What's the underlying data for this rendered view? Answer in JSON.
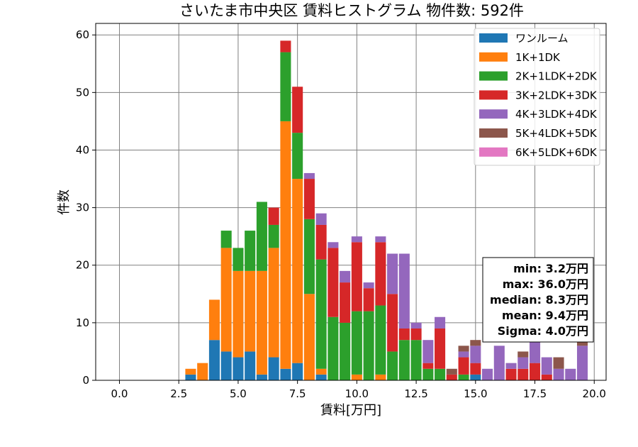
{
  "chart_data": {
    "type": "bar",
    "stacked": true,
    "title": "さいたま市中央区 賃料ヒストグラム  物件数: 592件",
    "xlabel": "賃料[万円]",
    "ylabel": "件数",
    "xlim": [
      -1.0,
      20.5
    ],
    "ylim": [
      0,
      62
    ],
    "xticks": [
      0.0,
      2.5,
      5.0,
      7.5,
      10.0,
      12.5,
      15.0,
      17.5,
      20.0
    ],
    "xtick_labels": [
      "0.0",
      "2.5",
      "5.0",
      "7.5",
      "10.0",
      "12.5",
      "15.0",
      "17.5",
      "20.0"
    ],
    "yticks": [
      0,
      10,
      20,
      30,
      40,
      50,
      60
    ],
    "ytick_labels": [
      "0",
      "10",
      "20",
      "30",
      "40",
      "50",
      "60"
    ],
    "grid": true,
    "legend_position": "top-right",
    "bin_width": 0.5,
    "x": [
      3.0,
      3.5,
      4.0,
      4.5,
      5.0,
      5.5,
      6.0,
      6.5,
      7.0,
      7.5,
      8.0,
      8.5,
      9.0,
      9.5,
      10.0,
      10.5,
      11.0,
      11.5,
      12.0,
      12.5,
      13.0,
      13.5,
      14.0,
      14.5,
      15.0,
      15.5,
      16.0,
      16.5,
      17.0,
      17.5,
      18.0,
      18.5,
      19.0,
      19.5
    ],
    "series": [
      {
        "name": "ワンルーム",
        "color": "#1f77b4",
        "values": [
          1,
          0,
          7,
          5,
          4,
          5,
          1,
          4,
          2,
          3,
          0,
          1,
          0,
          0,
          0,
          0,
          0,
          0,
          0,
          0,
          0,
          0,
          0,
          0,
          1,
          0,
          0,
          0,
          0,
          0,
          0,
          0,
          0,
          0
        ]
      },
      {
        "name": "1K+1DK",
        "color": "#ff7f0e",
        "values": [
          1,
          3,
          7,
          18,
          15,
          14,
          18,
          19,
          43,
          32,
          15,
          1,
          0,
          0,
          1,
          0,
          1,
          0,
          0,
          0,
          0,
          0,
          0,
          0,
          0,
          0,
          0,
          0,
          0,
          0,
          0,
          0,
          0,
          0
        ]
      },
      {
        "name": "2K+1LDK+2DK",
        "color": "#2ca02c",
        "values": [
          0,
          0,
          0,
          3,
          4,
          7,
          12,
          4,
          12,
          8,
          13,
          19,
          11,
          10,
          11,
          12,
          12,
          5,
          7,
          7,
          2,
          2,
          0,
          1,
          0,
          0,
          0,
          0,
          0,
          0,
          0,
          0,
          0,
          0
        ]
      },
      {
        "name": "3K+2LDK+3DK",
        "color": "#d62728",
        "values": [
          0,
          0,
          0,
          0,
          0,
          0,
          0,
          3,
          2,
          8,
          7,
          6,
          12,
          7,
          12,
          4,
          11,
          10,
          2,
          2,
          1,
          7,
          1,
          3,
          2,
          0,
          0,
          2,
          2,
          3,
          1,
          0,
          0,
          0
        ]
      },
      {
        "name": "4K+3LDK+4DK",
        "color": "#9467bd",
        "values": [
          0,
          0,
          0,
          0,
          0,
          0,
          0,
          0,
          0,
          0,
          1,
          2,
          1,
          2,
          1,
          1,
          1,
          7,
          13,
          1,
          4,
          2,
          0,
          1,
          3,
          2,
          6,
          1,
          2,
          4,
          3,
          2,
          2,
          6
        ]
      },
      {
        "name": "5K+4LDK+5DK",
        "color": "#8c564b",
        "values": [
          0,
          0,
          0,
          0,
          0,
          0,
          0,
          0,
          0,
          0,
          0,
          0,
          0,
          0,
          0,
          0,
          0,
          0,
          0,
          0,
          0,
          0,
          1,
          1,
          1,
          0,
          0,
          0,
          1,
          0,
          0,
          2,
          0,
          1
        ]
      },
      {
        "name": "6K+5LDK+6DK",
        "color": "#e377c2",
        "values": [
          0,
          0,
          0,
          0,
          0,
          0,
          0,
          0,
          0,
          0,
          0,
          0,
          0,
          0,
          0,
          0,
          0,
          0,
          0,
          0,
          0,
          0,
          0,
          0,
          0,
          0,
          0,
          0,
          0,
          0,
          0,
          0,
          0,
          0
        ]
      }
    ],
    "stats": {
      "min": "min: 3.2万円",
      "max": "max: 36.0万円",
      "median": "median: 8.3万円",
      "mean": "mean: 9.4万円",
      "sigma": "Sigma: 4.0万円"
    }
  }
}
